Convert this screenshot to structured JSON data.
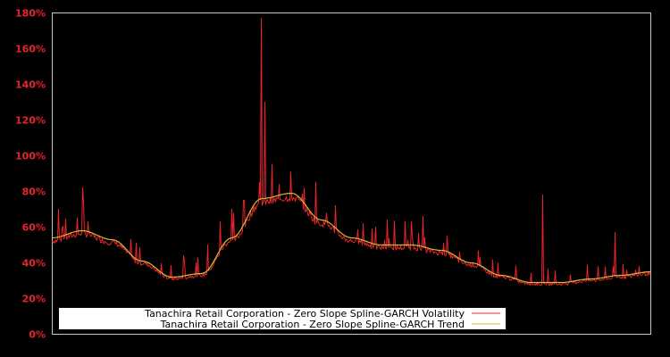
{
  "chart_data": {
    "type": "line",
    "title": "",
    "xlabel": "",
    "ylabel": "",
    "ylim": [
      0,
      180
    ],
    "y_ticks": [
      "0%",
      "20%",
      "40%",
      "60%",
      "80%",
      "100%",
      "120%",
      "140%",
      "160%",
      "180%"
    ],
    "grid": false,
    "legend_position": "lower center (inside plot)",
    "background": "#000000",
    "tick_color": "#e8242b",
    "series": [
      {
        "name": "Tanachira Retail Corporation - Zero Slope Spline-GARCH Volatility",
        "color": "#e8242b",
        "x": [
          0,
          0.01,
          0.02,
          0.03,
          0.04,
          0.05,
          0.06,
          0.07,
          0.08,
          0.09,
          0.1,
          0.12,
          0.14,
          0.16,
          0.18,
          0.2,
          0.22,
          0.24,
          0.26,
          0.28,
          0.3,
          0.32,
          0.34,
          0.35,
          0.355,
          0.36,
          0.38,
          0.4,
          0.42,
          0.44,
          0.46,
          0.48,
          0.5,
          0.52,
          0.54,
          0.56,
          0.58,
          0.6,
          0.62,
          0.64,
          0.66,
          0.68,
          0.7,
          0.72,
          0.74,
          0.76,
          0.78,
          0.8,
          0.82,
          0.84,
          0.86,
          0.88,
          0.9,
          0.92,
          0.94,
          0.96,
          0.98,
          1.0
        ],
        "values": [
          53,
          70,
          55,
          56,
          57,
          82,
          63,
          57,
          55,
          52,
          48,
          40,
          34,
          31,
          30,
          31,
          44,
          40,
          50,
          63,
          70,
          75,
          78,
          177,
          130,
          82,
          78,
          70,
          62,
          85,
          56,
          53,
          51,
          62,
          60,
          64,
          50,
          63,
          66,
          48,
          55,
          46,
          40,
          35,
          32,
          31,
          30,
          28,
          78,
          29,
          30,
          31,
          32,
          33,
          57,
          36,
          38,
          34
        ]
      },
      {
        "name": "Tanachira Retail Corporation - Zero Slope Spline-GARCH Trend",
        "color": "#d4b838",
        "x": [
          0,
          0.05,
          0.1,
          0.15,
          0.2,
          0.25,
          0.3,
          0.35,
          0.4,
          0.45,
          0.5,
          0.55,
          0.6,
          0.65,
          0.7,
          0.75,
          0.8,
          0.85,
          0.9,
          0.95,
          1.0
        ],
        "values": [
          54,
          58,
          53,
          41,
          32,
          34,
          54,
          76,
          79,
          64,
          54,
          50,
          50,
          47,
          40,
          33,
          29,
          29,
          31,
          33,
          35
        ]
      }
    ]
  }
}
